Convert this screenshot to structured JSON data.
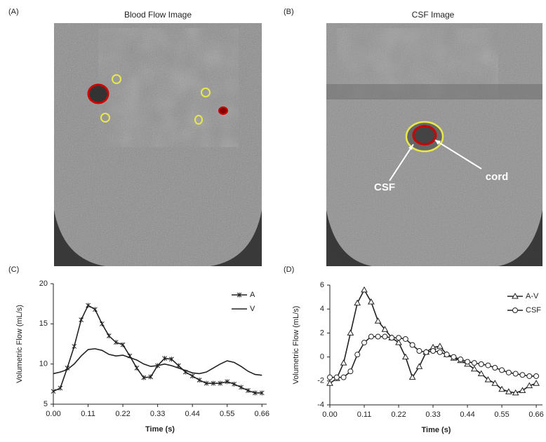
{
  "images": [
    {
      "panel_label": "(A)",
      "title": "Blood Flow Image"
    },
    {
      "panel_label": "(B)",
      "title": "CSF Image",
      "annotations": [
        "CSF",
        "cord"
      ]
    }
  ],
  "chart_data": [
    {
      "type": "line",
      "panel_label": "(C)",
      "xlabel": "Time (s)",
      "ylabel": "Volumetric Flow (mL/s)",
      "x": [
        0,
        0.022,
        0.044,
        0.066,
        0.088,
        0.11,
        0.132,
        0.154,
        0.176,
        0.198,
        0.22,
        0.242,
        0.264,
        0.286,
        0.308,
        0.33,
        0.352,
        0.374,
        0.396,
        0.418,
        0.44,
        0.462,
        0.484,
        0.506,
        0.528,
        0.55,
        0.572,
        0.594,
        0.616,
        0.638,
        0.66
      ],
      "series": [
        {
          "name": "A",
          "color": "#222222",
          "marker": "asterisk",
          "values": [
            6.6,
            7.0,
            9.5,
            12.2,
            15.5,
            17.3,
            16.8,
            15.0,
            13.5,
            12.7,
            12.4,
            11.0,
            9.5,
            8.3,
            8.4,
            9.8,
            10.7,
            10.6,
            9.8,
            9.0,
            8.5,
            8.0,
            7.6,
            7.6,
            7.6,
            7.8,
            7.5,
            7.1,
            6.7,
            6.4,
            6.4
          ]
        },
        {
          "name": "V",
          "color": "#222222",
          "marker": "none",
          "values": [
            8.8,
            9.0,
            9.3,
            10.0,
            11.0,
            11.8,
            11.9,
            11.7,
            11.2,
            11.0,
            11.1,
            10.8,
            10.5,
            10.0,
            9.7,
            9.8,
            10.0,
            9.8,
            9.5,
            9.2,
            8.9,
            8.8,
            9.0,
            9.5,
            10.0,
            10.4,
            10.2,
            9.7,
            9.1,
            8.7,
            8.6
          ]
        }
      ],
      "xlim": [
        0,
        0.675
      ],
      "ylim": [
        5,
        20
      ],
      "xticks": [
        {
          "value": 0,
          "label": "0.00"
        },
        0.11,
        0.22,
        0.33,
        0.44,
        0.55,
        0.66
      ],
      "yticks": [
        5,
        10,
        15,
        20
      ],
      "legend": "upper right",
      "grid": false
    },
    {
      "type": "line",
      "panel_label": "(D)",
      "xlabel": "Time (s)",
      "ylabel": "Volumetric Flow (mL/s)",
      "x": [
        0,
        0.022,
        0.044,
        0.066,
        0.088,
        0.11,
        0.132,
        0.154,
        0.176,
        0.198,
        0.22,
        0.242,
        0.264,
        0.286,
        0.308,
        0.33,
        0.352,
        0.374,
        0.396,
        0.418,
        0.44,
        0.462,
        0.484,
        0.506,
        0.528,
        0.55,
        0.572,
        0.594,
        0.616,
        0.638,
        0.66
      ],
      "series": [
        {
          "name": "A-V",
          "color": "#222222",
          "marker": "triangle",
          "values": [
            -2.2,
            -1.8,
            -0.5,
            2.0,
            4.5,
            5.6,
            4.6,
            3.0,
            2.3,
            1.6,
            1.2,
            0.0,
            -1.7,
            -0.8,
            0.4,
            0.8,
            0.9,
            0.2,
            -0.1,
            -0.3,
            -0.6,
            -1.0,
            -1.4,
            -1.9,
            -2.2,
            -2.7,
            -2.9,
            -3.0,
            -2.8,
            -2.4,
            -2.2
          ]
        },
        {
          "name": "CSF",
          "color": "#222222",
          "marker": "circle",
          "values": [
            -1.7,
            -1.7,
            -1.7,
            -1.2,
            0.2,
            1.2,
            1.7,
            1.7,
            1.7,
            1.6,
            1.6,
            1.5,
            1.0,
            0.5,
            0.4,
            0.5,
            0.4,
            0.2,
            0.0,
            -0.2,
            -0.4,
            -0.5,
            -0.6,
            -0.7,
            -0.9,
            -1.1,
            -1.3,
            -1.4,
            -1.5,
            -1.6,
            -1.6
          ]
        }
      ],
      "xlim": [
        0,
        0.68
      ],
      "ylim": [
        -4,
        6
      ],
      "xticks": [
        {
          "value": 0,
          "label": "0.00"
        },
        0.11,
        0.22,
        0.33,
        0.44,
        0.55,
        0.66
      ],
      "yticks": [
        -4,
        -2,
        0,
        2,
        4,
        6
      ],
      "legend": "upper right",
      "grid": false
    }
  ]
}
